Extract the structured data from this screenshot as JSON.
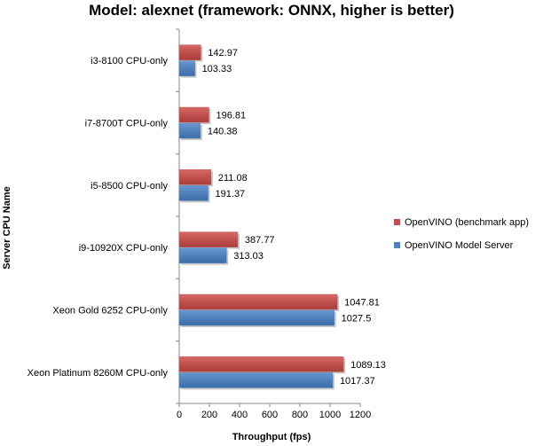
{
  "chart_data": {
    "type": "bar",
    "orientation": "horizontal",
    "title": "Model: alexnet (framework: ONNX, higher is better)",
    "xlabel": "Throughput (fps)",
    "ylabel": "Server CPU Name",
    "xlim": [
      0,
      1200
    ],
    "xticks": [
      "0",
      "200",
      "400",
      "600",
      "800",
      "1000",
      "1200"
    ],
    "grid": false,
    "legend_position": "right",
    "categories": [
      "i3-8100 CPU-only",
      "i7-8700T CPU-only",
      "i5-8500 CPU-only",
      "i9-10920X CPU-only",
      "Xeon Gold 6252 CPU-only",
      "Xeon Platinum 8260M CPU-only"
    ],
    "series": [
      {
        "name": "OpenVINO (benchmark app)",
        "color": "#c0504d",
        "values": [
          142.97,
          196.81,
          211.08,
          387.77,
          1047.81,
          1089.13
        ],
        "labels": [
          "142.97",
          "196.81",
          "211.08",
          "387.77",
          "1047.81",
          "1089.13"
        ]
      },
      {
        "name": "OpenVINO Model Server",
        "color": "#4f81bd",
        "values": [
          103.33,
          140.38,
          191.37,
          313.03,
          1027.5,
          1017.37
        ],
        "labels": [
          "103.33",
          "140.38",
          "191.37",
          "313.03",
          "1027.5",
          "1017.37"
        ]
      }
    ]
  }
}
